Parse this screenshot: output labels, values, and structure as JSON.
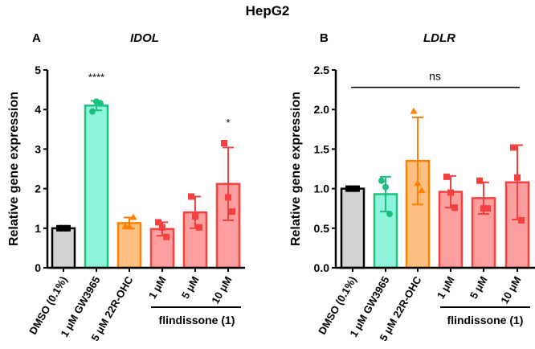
{
  "chart_data": {
    "title": "HepG2",
    "group_label": "flindissone (1)",
    "categories": [
      "DMSO (0.1%)",
      "1 μM GW3965",
      "5 μM 22R-OHC",
      "1 μM",
      "5 μM",
      "10 μM"
    ],
    "colors": {
      "fill": [
        "#d3d3d3",
        "#8ef5dc",
        "#ffbf80",
        "#ff9e9e",
        "#ff9e9e",
        "#ff9e9e"
      ],
      "stroke": [
        "#000000",
        "#1dbf7f",
        "#ff8000",
        "#f54040",
        "#f54040",
        "#f54040"
      ]
    },
    "markers": [
      "square",
      "circle",
      "triangle",
      "square",
      "square",
      "square"
    ],
    "panels": [
      {
        "type": "bar",
        "panel_label": "A",
        "title": "IDOL",
        "ylabel": "Relative gene expression",
        "ylim": [
          0,
          5
        ],
        "yticks": [
          "0",
          "1",
          "2",
          "3",
          "4",
          "5"
        ],
        "means": [
          1.0,
          4.1,
          1.13,
          0.98,
          1.4,
          2.12
        ],
        "sd": [
          0.02,
          0.12,
          0.14,
          0.17,
          0.4,
          0.92
        ],
        "points": [
          [
            1.0,
            1.0,
            1.0
          ],
          [
            3.95,
            4.2,
            4.15
          ],
          [
            1.05,
            1.05,
            1.28
          ],
          [
            1.15,
            1.02,
            0.78
          ],
          [
            1.8,
            1.3,
            1.02
          ],
          [
            3.15,
            1.78,
            1.42
          ]
        ],
        "significance": [
          {
            "bar": 1,
            "label": "****",
            "y": 4.85
          },
          {
            "bar": 5,
            "label": "*",
            "y": 3.7
          }
        ]
      },
      {
        "type": "bar",
        "panel_label": "B",
        "title": "LDLR",
        "ylabel": "Relative gene expression",
        "ylim": [
          0,
          2.5
        ],
        "yticks": [
          "0.0",
          "0.5",
          "1.0",
          "1.5",
          "2.0",
          "2.5"
        ],
        "means": [
          1.0,
          0.93,
          1.35,
          0.96,
          0.88,
          1.08
        ],
        "sd": [
          0.01,
          0.22,
          0.55,
          0.2,
          0.2,
          0.47
        ],
        "points": [
          [
            1.0,
            1.0,
            1.0
          ],
          [
            1.1,
            1.02,
            0.68
          ],
          [
            1.98,
            1.07,
            0.98
          ],
          [
            1.15,
            0.95,
            0.76
          ],
          [
            1.1,
            0.75,
            0.75
          ],
          [
            1.52,
            1.14,
            0.6
          ]
        ],
        "ns_bracket": {
          "label": "ns",
          "y": 2.28,
          "from_bar": 0,
          "to_bar": 5
        }
      }
    ]
  }
}
